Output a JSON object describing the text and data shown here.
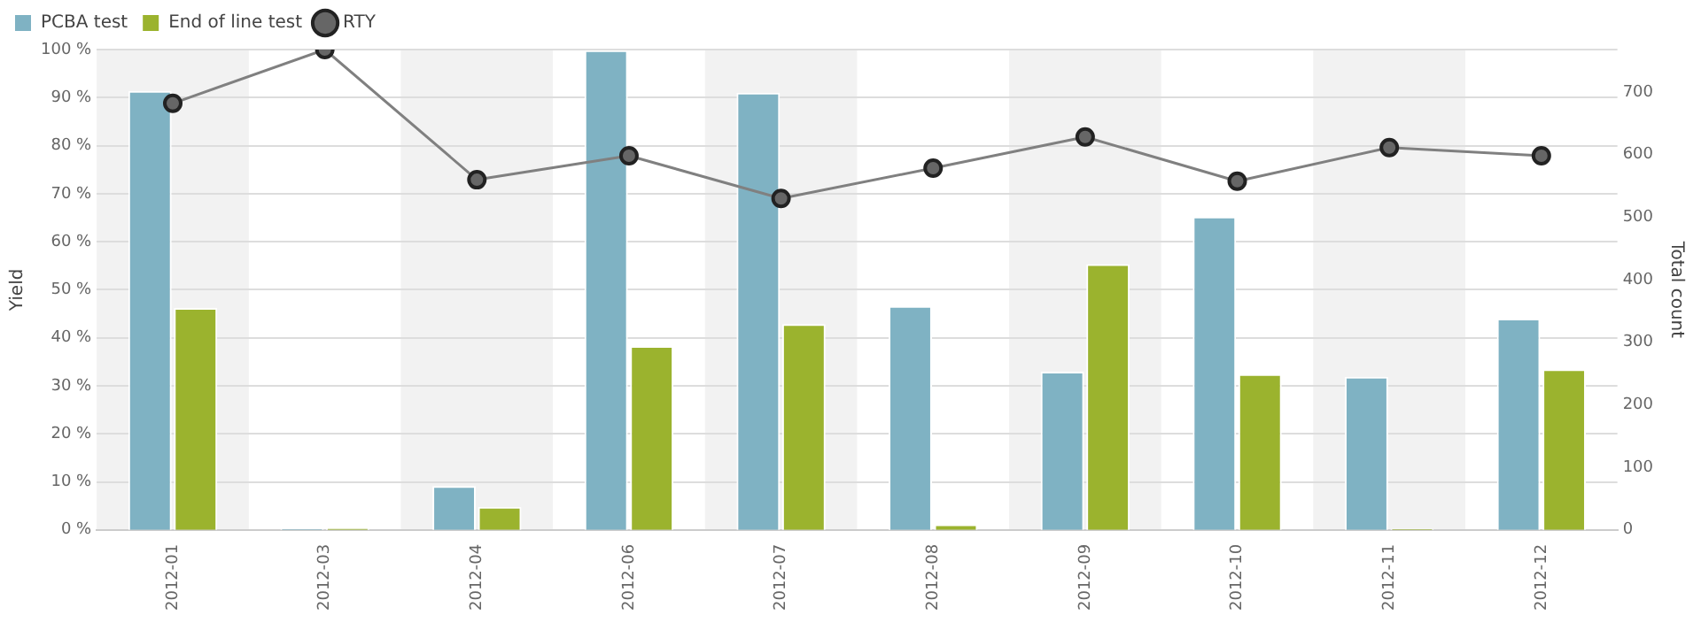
{
  "chart_data": {
    "type": "bar",
    "categories": [
      "2012-01",
      "2012-03",
      "2012-04",
      "2012-06",
      "2012-07",
      "2012-08",
      "2012-09",
      "2012-10",
      "2012-11",
      "2012-12"
    ],
    "series": [
      {
        "name": "PCBA test",
        "axis": "y2",
        "color": "#7fb2c3",
        "values": [
          702,
          2,
          70,
          767,
          699,
          358,
          253,
          501,
          245,
          338
        ]
      },
      {
        "name": "End of line test",
        "axis": "y2",
        "color": "#9bb32e",
        "values": [
          355,
          3,
          37,
          294,
          329,
          9,
          425,
          249,
          2,
          257
        ]
      },
      {
        "name": "RTY",
        "type": "line",
        "axis": "y",
        "color": "#808080",
        "values": [
          88.8,
          100,
          72.9,
          77.9,
          69.0,
          75.3,
          81.8,
          72.6,
          79.6,
          77.9
        ]
      }
    ],
    "ylabel": "Yield",
    "y2label": "Total count",
    "ylim": [
      0,
      100
    ],
    "yticks": [
      {
        "value": 0,
        "label": "0 %"
      },
      {
        "value": 10,
        "label": "10 %"
      },
      {
        "value": 20,
        "label": "20 %"
      },
      {
        "value": 30,
        "label": "30 %"
      },
      {
        "value": 40,
        "label": "40 %"
      },
      {
        "value": 50,
        "label": "50 %"
      },
      {
        "value": 60,
        "label": "60 %"
      },
      {
        "value": 70,
        "label": "70 %"
      },
      {
        "value": 80,
        "label": "80 %"
      },
      {
        "value": 90,
        "label": "90 %"
      },
      {
        "value": 100,
        "label": "100 %"
      }
    ],
    "y2lim": [
      0,
      768
    ],
    "y2ticks": [
      0,
      100,
      200,
      300,
      400,
      500,
      600,
      700
    ],
    "grid": "y",
    "legend": "top left",
    "marker": "circle",
    "line_style": "solid"
  }
}
